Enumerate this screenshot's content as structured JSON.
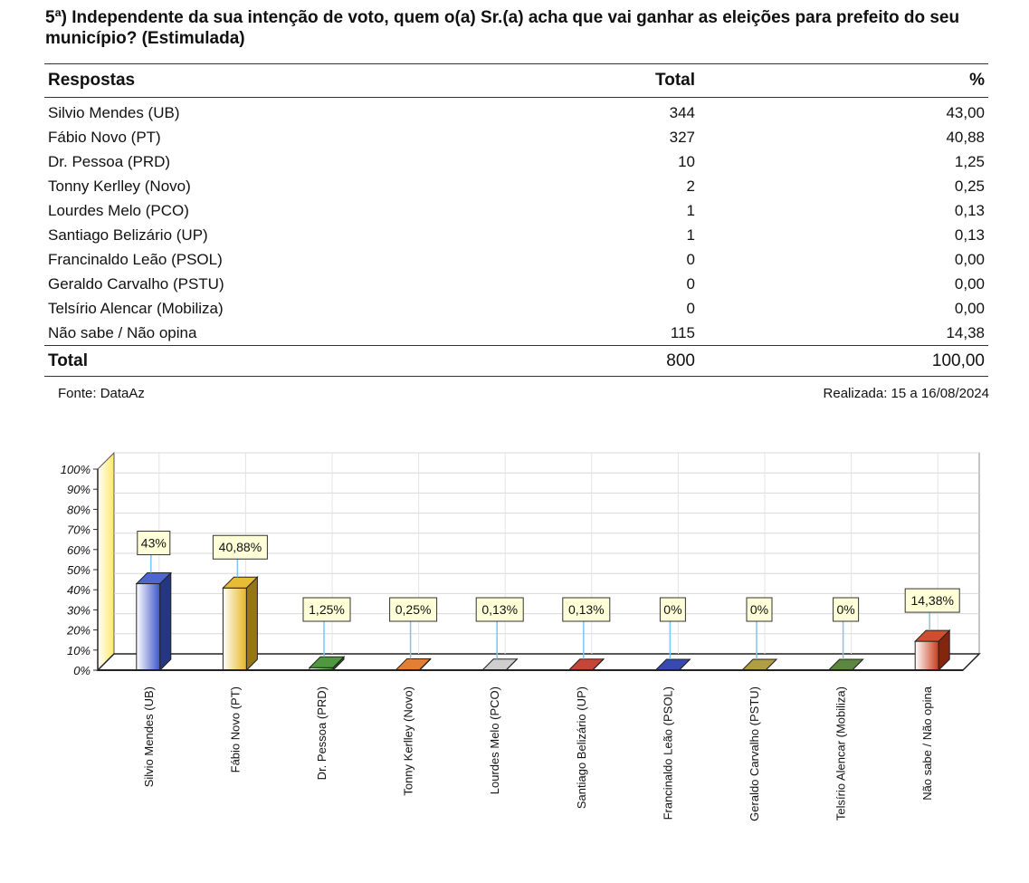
{
  "question": "5ª) Independente da sua intenção de voto, quem o(a) Sr.(a) acha que vai ganhar as eleições para prefeito do seu município? (Estimulada)",
  "table": {
    "headers": [
      "Respostas",
      "Total",
      "%"
    ],
    "rows": [
      {
        "label": "Silvio Mendes (UB)",
        "total": "344",
        "pct": "43,00"
      },
      {
        "label": "Fábio Novo (PT)",
        "total": "327",
        "pct": "40,88"
      },
      {
        "label": "Dr. Pessoa (PRD)",
        "total": "10",
        "pct": "1,25"
      },
      {
        "label": "Tonny Kerlley (Novo)",
        "total": "2",
        "pct": "0,25"
      },
      {
        "label": "Lourdes Melo (PCO)",
        "total": "1",
        "pct": "0,13"
      },
      {
        "label": "Santiago Belizário (UP)",
        "total": "1",
        "pct": "0,13"
      },
      {
        "label": "Francinaldo Leão (PSOL)",
        "total": "0",
        "pct": "0,00"
      },
      {
        "label": "Geraldo Carvalho (PSTU)",
        "total": "0",
        "pct": "0,00"
      },
      {
        "label": "Telsírio Alencar (Mobiliza)",
        "total": "0",
        "pct": "0,00"
      },
      {
        "label": "Não sabe / Não opina",
        "total": "115",
        "pct": "14,38"
      }
    ],
    "footer": {
      "label": "Total",
      "total": "800",
      "pct": "100,00"
    }
  },
  "source": "Fonte: DataAz",
  "date": "Realizada:  15 a 16/08/2024",
  "chart_data": {
    "type": "bar",
    "title": "",
    "xlabel": "",
    "ylabel": "",
    "ylim": [
      0,
      100
    ],
    "yticks": [
      "0%",
      "10%",
      "20%",
      "30%",
      "40%",
      "50%",
      "60%",
      "70%",
      "80%",
      "90%",
      "100%"
    ],
    "categories": [
      "Silvio Mendes (UB)",
      "Fábio Novo (PT)",
      "Dr. Pessoa (PRD)",
      "Tonny Kerlley (Novo)",
      "Lourdes Melo (PCO)",
      "Santiago Belizário (UP)",
      "Francinaldo Leão (PSOL)",
      "Geraldo Carvalho (PSTU)",
      "Telsírio Alencar (Mobiliza)",
      "Não sabe / Não opina"
    ],
    "values": [
      43,
      40.88,
      1.25,
      0.25,
      0.13,
      0.13,
      0,
      0,
      0,
      14.38
    ],
    "data_labels": [
      "43%",
      "40,88%",
      "1,25%",
      "0,25%",
      "0,13%",
      "0,13%",
      "0%",
      "0%",
      "0%",
      "14,38%"
    ],
    "colors": [
      "#3a55c8",
      "#e6b420",
      "#3c8c2a",
      "#e0701e",
      "#c8c8c8",
      "#c03020",
      "#2236a8",
      "#a8922e",
      "#4a7a2a",
      "#c83a18"
    ],
    "wall_color": "#ffe866",
    "label_box_color": "#ffffd8"
  }
}
